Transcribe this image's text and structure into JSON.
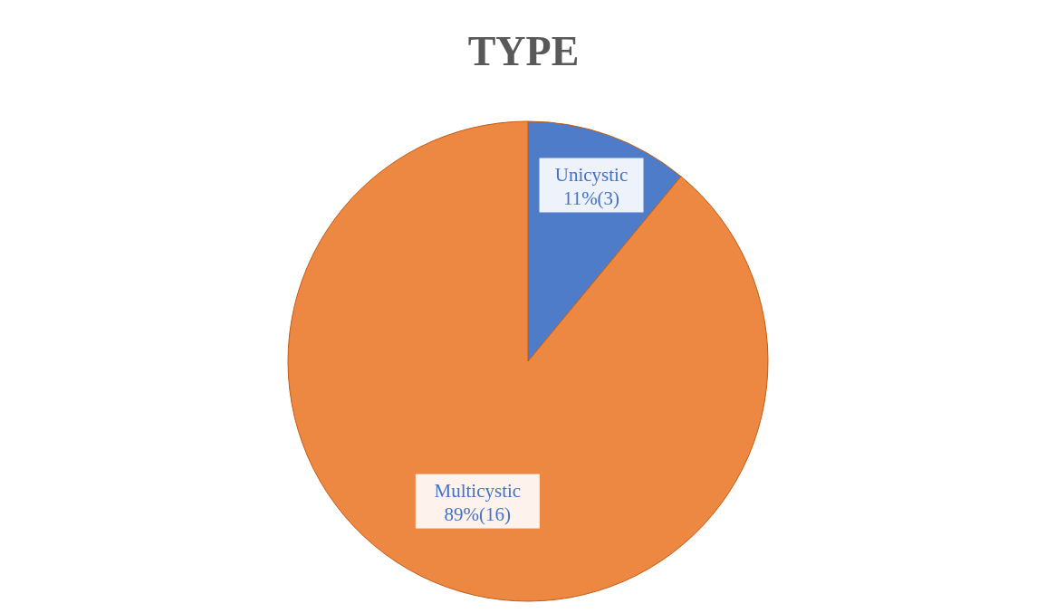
{
  "chart_data": {
    "type": "pie",
    "title": "TYPE",
    "categories": [
      "Unicystic",
      "Multicystic"
    ],
    "values": [
      11,
      89
    ],
    "value_labels": [
      "11%(3)",
      "89%(16)"
    ],
    "colors": [
      "#4f7cc9",
      "#ec8842"
    ],
    "legend": false
  }
}
